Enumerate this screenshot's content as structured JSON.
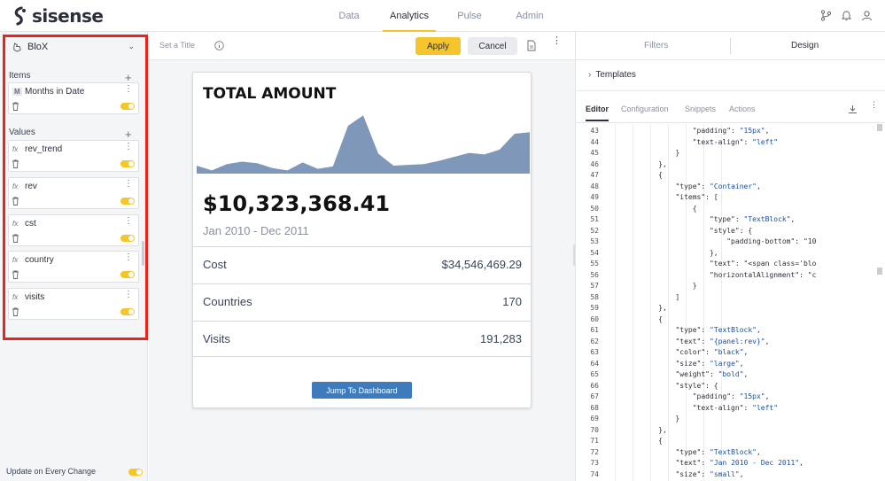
{
  "brand": {
    "name": "sisense"
  },
  "nav": {
    "items": [
      "Data",
      "Analytics",
      "Pulse",
      "Admin"
    ],
    "active": "Analytics"
  },
  "top_icons": [
    "git-branch-icon",
    "bell-icon",
    "user-icon"
  ],
  "left_panel": {
    "widget_type": "BloX",
    "items_label": "Items",
    "values_label": "Values",
    "items": [
      {
        "badge": "M",
        "name": "Months in Date"
      }
    ],
    "values": [
      {
        "badge": "fx",
        "name": "rev_trend"
      },
      {
        "badge": "fx",
        "name": "rev"
      },
      {
        "badge": "fx",
        "name": "cst"
      },
      {
        "badge": "fx",
        "name": "country"
      },
      {
        "badge": "fx",
        "name": "visits"
      }
    ],
    "update_label": "Update on Every Change"
  },
  "toolbar": {
    "title_placeholder": "Set a Title",
    "apply": "Apply",
    "cancel": "Cancel"
  },
  "widget": {
    "title": "TOTAL AMOUNT",
    "value": "$10,323,368.41",
    "date_range": "Jan 2010 - Dec 2011",
    "rows": [
      {
        "label": "Cost",
        "value": "$34,546,469.29"
      },
      {
        "label": "Countries",
        "value": "170"
      },
      {
        "label": "Visits",
        "value": "191,283"
      }
    ],
    "button": "Jump To Dashboard",
    "sparkline_color": "#7f97b8",
    "sparkline_values": [
      10,
      4,
      12,
      15,
      13,
      7,
      4,
      14,
      6,
      9,
      60,
      73,
      25,
      10,
      11,
      12,
      16,
      21,
      26,
      24,
      30,
      50,
      52
    ]
  },
  "right_panel": {
    "tabs": [
      "Filters",
      "Design"
    ],
    "active_tab": "Design",
    "templates": "Templates",
    "editor_tabs": [
      "Editor",
      "Configuration",
      "Snippets",
      "Actions"
    ],
    "active_editor_tab": "Editor",
    "code_lines": [
      {
        "n": "43",
        "t": "                  \"padding\": \"15px\","
      },
      {
        "n": "44",
        "t": "                  \"text-align\": \"left\""
      },
      {
        "n": "45",
        "t": "              }"
      },
      {
        "n": "46",
        "t": "          },"
      },
      {
        "n": "47",
        "t": "          {"
      },
      {
        "n": "48",
        "t": "              \"type\": \"Container\","
      },
      {
        "n": "49",
        "t": "              \"items\": ["
      },
      {
        "n": "50",
        "t": "                  {"
      },
      {
        "n": "51",
        "t": "                      \"type\": \"TextBlock\","
      },
      {
        "n": "52",
        "t": "                      \"style\": {"
      },
      {
        "n": "53",
        "t": "                          \"padding-bottom\": \"10"
      },
      {
        "n": "54",
        "t": "                      },"
      },
      {
        "n": "55",
        "t": "                      \"text\": \"<span class='blo"
      },
      {
        "n": "56",
        "t": "                      \"horizontalAlignment\": \"c"
      },
      {
        "n": "57",
        "t": "                  }"
      },
      {
        "n": "58",
        "t": "              ]"
      },
      {
        "n": "59",
        "t": "          },"
      },
      {
        "n": "60",
        "t": "          {"
      },
      {
        "n": "61",
        "t": "              \"type\": \"TextBlock\","
      },
      {
        "n": "62",
        "t": "              \"text\": \"{panel:rev}\","
      },
      {
        "n": "63",
        "t": "              \"color\": \"black\","
      },
      {
        "n": "64",
        "t": "              \"size\": \"large\","
      },
      {
        "n": "65",
        "t": "              \"weight\": \"bold\","
      },
      {
        "n": "66",
        "t": "              \"style\": {"
      },
      {
        "n": "67",
        "t": "                  \"padding\": \"15px\","
      },
      {
        "n": "68",
        "t": "                  \"text-align\": \"left\""
      },
      {
        "n": "69",
        "t": "              }"
      },
      {
        "n": "70",
        "t": "          },"
      },
      {
        "n": "71",
        "t": "          {"
      },
      {
        "n": "72",
        "t": "              \"type\": \"TextBlock\","
      },
      {
        "n": "73",
        "t": "              \"text\": \"Jan 2010 - Dec 2011\","
      },
      {
        "n": "74",
        "t": "              \"size\": \"small\","
      }
    ]
  },
  "colors": {
    "accent": "#f6c52b",
    "highlight_border": "#e8241f",
    "button_blue": "#3f7bbb"
  }
}
